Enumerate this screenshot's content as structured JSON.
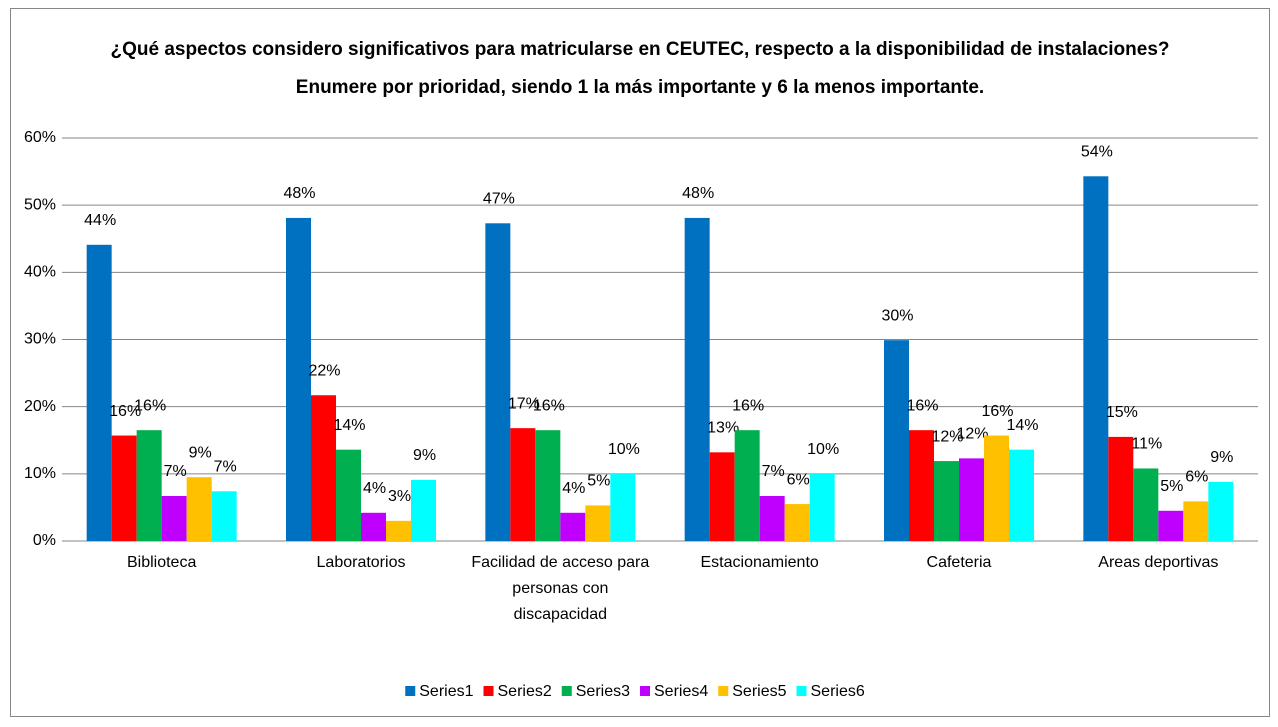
{
  "chart_data": {
    "type": "bar",
    "title": [
      "¿Qué aspectos considero  significativos para matricularse en CEUTEC, respecto a la disponibilidad de instalaciones?",
      "Enumere por prioridad, siendo 1 la más importante y 6 la menos importante."
    ],
    "categories": [
      "Biblioteca",
      "Laboratorios",
      "Facilidad de acceso  para personas con discapacidad",
      "Estacionamiento",
      "Cafeteria",
      "Areas deportivas"
    ],
    "series": [
      {
        "name": "Series1",
        "color": "#0070c0",
        "values": [
          44.1,
          48.1,
          47.3,
          48.1,
          29.9,
          54.3
        ],
        "value_labels": [
          "44%",
          "48%",
          "47%",
          "48%",
          "30%",
          "54%"
        ]
      },
      {
        "name": "Series2",
        "color": "#ff0000",
        "values": [
          15.7,
          21.7,
          16.8,
          13.2,
          16.5,
          15.5
        ],
        "value_labels": [
          "16%",
          "22%",
          "17%",
          "13%",
          "16%",
          "15%"
        ]
      },
      {
        "name": "Series3",
        "color": "#00b050",
        "values": [
          16.5,
          13.6,
          16.5,
          16.5,
          11.9,
          10.8
        ],
        "value_labels": [
          "16%",
          "14%",
          "16%",
          "16%",
          "12%",
          "11%"
        ]
      },
      {
        "name": "Series4",
        "color": "#bf00ff",
        "values": [
          6.7,
          4.2,
          4.2,
          6.7,
          12.3,
          4.5
        ],
        "value_labels": [
          "7%",
          "4%",
          "4%",
          "7%",
          "12%",
          "5%"
        ]
      },
      {
        "name": "Series5",
        "color": "#ffc000",
        "values": [
          9.5,
          3.0,
          5.3,
          5.5,
          15.7,
          5.9
        ],
        "value_labels": [
          "9%",
          "3%",
          "5%",
          "6%",
          "16%",
          "6%"
        ]
      },
      {
        "name": "Series6",
        "color": "#00ffff",
        "values": [
          7.4,
          9.1,
          10.0,
          10.0,
          13.6,
          8.8
        ],
        "value_labels": [
          "7%",
          "9%",
          "10%",
          "10%",
          "14%",
          "9%"
        ]
      }
    ],
    "ylim": [
      0,
      60
    ],
    "yticks": [
      {
        "value": 0,
        "label": "0%"
      },
      {
        "value": 10,
        "label": "10%"
      },
      {
        "value": 20,
        "label": "20%"
      },
      {
        "value": 30,
        "label": "30%"
      },
      {
        "value": 40,
        "label": "40%"
      },
      {
        "value": 50,
        "label": "50%"
      },
      {
        "value": 60,
        "label": "60%"
      }
    ],
    "grid": true,
    "legend": "bottom"
  }
}
